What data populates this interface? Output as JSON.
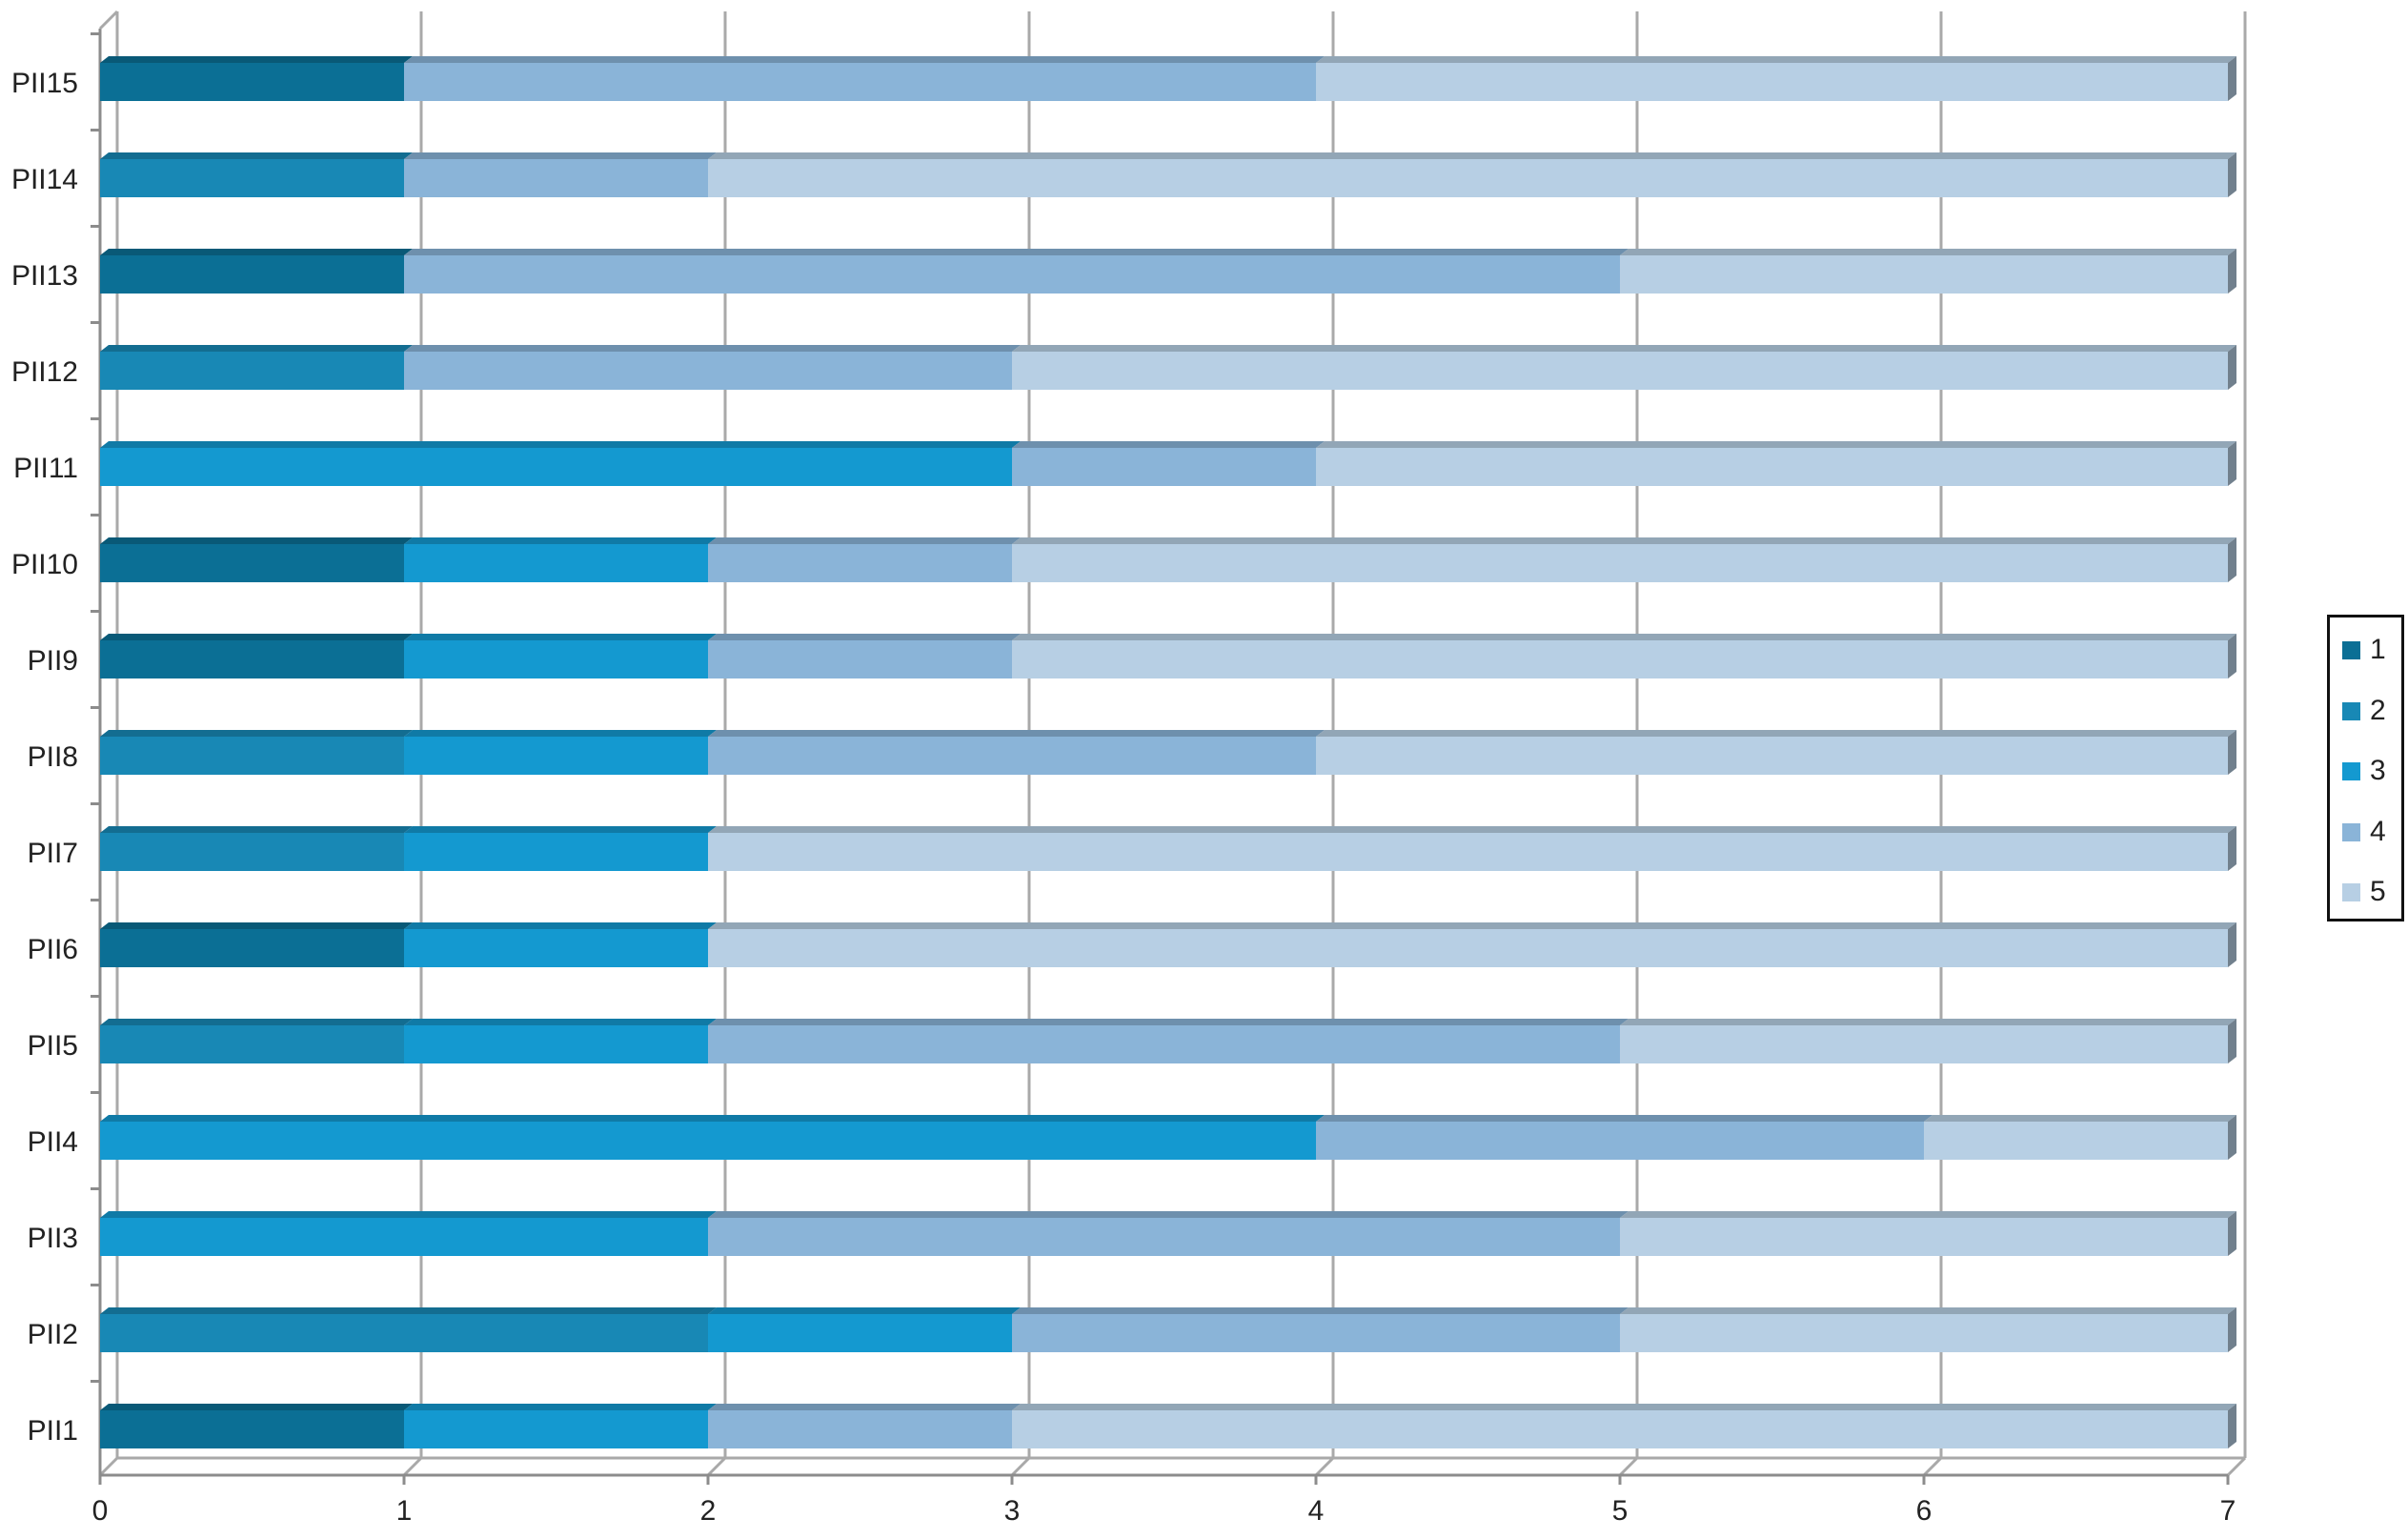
{
  "chart_data": {
    "type": "bar",
    "orientation": "horizontal",
    "stacked": true,
    "title": "",
    "xlabel": "",
    "ylabel": "",
    "xlim": [
      0,
      7
    ],
    "x_ticks": [
      "0",
      "1",
      "2",
      "3",
      "4",
      "5",
      "6",
      "7"
    ],
    "grid": true,
    "legend_position": "right",
    "categories": [
      "PII1",
      "PII2",
      "PII3",
      "PII4",
      "PII5",
      "PII6",
      "PII7",
      "PII8",
      "PII9",
      "PII10",
      "PII11",
      "PII12",
      "PII13",
      "PII14",
      "PII15"
    ],
    "series": [
      {
        "name": "1",
        "color": "#0b6f95",
        "values": [
          1,
          0,
          0,
          0,
          0,
          1,
          0,
          0,
          1,
          1,
          0,
          0,
          1,
          0,
          1
        ]
      },
      {
        "name": "2",
        "color": "#1888b5",
        "values": [
          0,
          2,
          0,
          0,
          1,
          0,
          1,
          1,
          0,
          0,
          0,
          1,
          0,
          1,
          0
        ]
      },
      {
        "name": "3",
        "color": "#1499d0",
        "values": [
          1,
          1,
          2,
          4,
          1,
          1,
          1,
          1,
          1,
          1,
          3,
          0,
          0,
          0,
          0
        ]
      },
      {
        "name": "4",
        "color": "#8ab4d8",
        "values": [
          1,
          2,
          3,
          2,
          3,
          0,
          0,
          2,
          1,
          1,
          1,
          2,
          4,
          1,
          3
        ]
      },
      {
        "name": "5",
        "color": "#b7cfe4",
        "values": [
          4,
          2,
          2,
          1,
          2,
          5,
          5,
          3,
          4,
          4,
          3,
          4,
          2,
          5,
          3
        ]
      }
    ]
  }
}
